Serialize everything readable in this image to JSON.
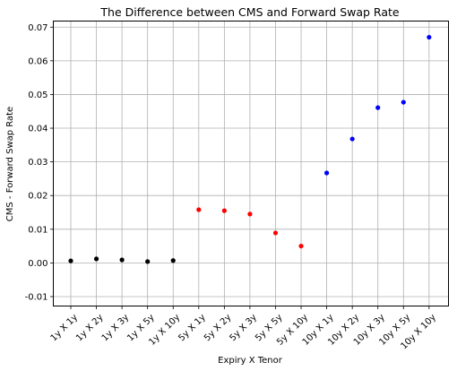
{
  "chart_data": {
    "type": "scatter",
    "title": "The Difference between CMS and Forward Swap Rate",
    "xlabel": "Expiry X Tenor",
    "ylabel": "CMS - Forward Swap Rate",
    "categories": [
      "1y X 1y",
      "1y X 2y",
      "1y X 3y",
      "1y X 5y",
      "1y X 10y",
      "5y X 1y",
      "5y X 2y",
      "5y X 3y",
      "5y X 5y",
      "5y X 10y",
      "10y X 1y",
      "10y X 2y",
      "10y X 3y",
      "10y X 5y",
      "10y X 10y"
    ],
    "values": [
      0.0006,
      0.0012,
      0.0009,
      0.0004,
      0.0007,
      0.0158,
      0.0155,
      0.0145,
      0.0089,
      0.005,
      0.0267,
      0.0368,
      0.0461,
      0.0477,
      0.067
    ],
    "point_colors": [
      "#000000",
      "#000000",
      "#000000",
      "#000000",
      "#000000",
      "#ff0000",
      "#ff0000",
      "#ff0000",
      "#ff0000",
      "#ff0000",
      "#0000ff",
      "#0000ff",
      "#0000ff",
      "#0000ff",
      "#0000ff"
    ],
    "yticks": [
      -0.01,
      0.0,
      0.01,
      0.02,
      0.03,
      0.04,
      0.05,
      0.06,
      0.07
    ],
    "ytick_labels": [
      "-0.01",
      "0.00",
      "0.01",
      "0.02",
      "0.03",
      "0.04",
      "0.05",
      "0.06",
      "0.07"
    ],
    "ylim": [
      -0.0128,
      0.0718
    ],
    "grid": true,
    "legend": "none"
  }
}
